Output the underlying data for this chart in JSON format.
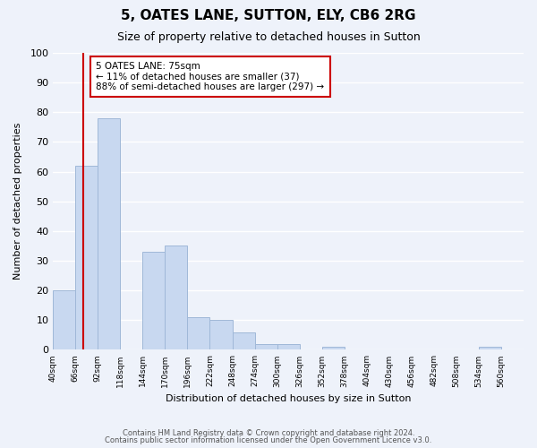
{
  "title": "5, OATES LANE, SUTTON, ELY, CB6 2RG",
  "subtitle": "Size of property relative to detached houses in Sutton",
  "xlabel": "Distribution of detached houses by size in Sutton",
  "ylabel": "Number of detached properties",
  "bin_labels": [
    "40sqm",
    "66sqm",
    "92sqm",
    "118sqm",
    "144sqm",
    "170sqm",
    "196sqm",
    "222sqm",
    "248sqm",
    "274sqm",
    "300sqm",
    "326sqm",
    "352sqm",
    "378sqm",
    "404sqm",
    "430sqm",
    "456sqm",
    "482sqm",
    "508sqm",
    "534sqm",
    "560sqm"
  ],
  "bar_heights": [
    20,
    62,
    78,
    0,
    33,
    35,
    11,
    10,
    6,
    2,
    2,
    0,
    1,
    0,
    0,
    0,
    0,
    0,
    0,
    1,
    0
  ],
  "bar_color": "#c8d8f0",
  "bar_edge_color": "#a0b8d8",
  "property_line_x": 75,
  "xlim_left": 40,
  "xlim_right": 586,
  "ylim": [
    0,
    100
  ],
  "bin_width": 26,
  "bin_start": 40,
  "annotation_text": "5 OATES LANE: 75sqm\n← 11% of detached houses are smaller (37)\n88% of semi-detached houses are larger (297) →",
  "annotation_box_color": "#ffffff",
  "annotation_box_edge": "#cc0000",
  "property_line_color": "#cc0000",
  "footer1": "Contains HM Land Registry data © Crown copyright and database right 2024.",
  "footer2": "Contains public sector information licensed under the Open Government Licence v3.0.",
  "background_color": "#eef2fa",
  "grid_color": "#ffffff",
  "yticks": [
    0,
    10,
    20,
    30,
    40,
    50,
    60,
    70,
    80,
    90,
    100
  ]
}
